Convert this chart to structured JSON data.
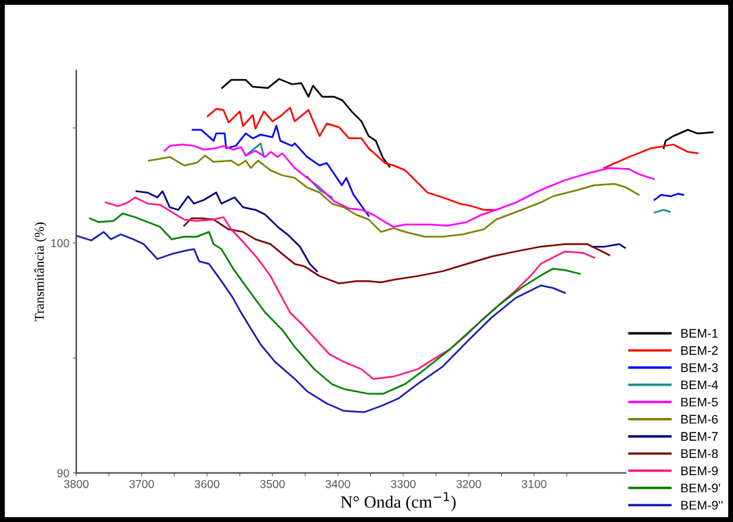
{
  "chart_data": {
    "type": "line",
    "xlabel": "N° Onda (cm$^{−1}$)",
    "ylabel": "Transmitância (%)",
    "xlim": [
      3800,
      2815
    ],
    "ylim": [
      90,
      107.5
    ],
    "xticks": [
      3800,
      {
        "value": 3750,
        "label": null
      },
      3700,
      {
        "value": 3650,
        "label": null
      },
      3600,
      {
        "value": 3550,
        "label": null
      },
      3500,
      {
        "value": 3450,
        "label": null
      },
      3400,
      {
        "value": 3350,
        "label": null
      },
      3300,
      {
        "value": 3250,
        "label": null
      },
      3200,
      {
        "value": 3150,
        "label": null
      },
      3100,
      {
        "value": 3050,
        "label": null
      }
    ],
    "yticks": [
      90,
      {
        "value": 95,
        "label": null
      },
      100,
      {
        "value": 105,
        "label": null
      }
    ],
    "grid": false,
    "legend": "bottom right",
    "marker": "none",
    "line_style": "solid",
    "series": [
      {
        "name": "BEM-1",
        "color": "#000000",
        "x": [
          3577,
          3563,
          3541,
          3530,
          3507,
          3490,
          3470,
          3456,
          3445,
          3438,
          3424,
          3406,
          3393,
          3379,
          3364,
          3353,
          3342,
          3331,
          3321,
          3100,
          2902,
          2899,
          2887,
          2865,
          2850,
          2827
        ],
        "values": [
          106.74,
          107.09,
          107.09,
          106.79,
          106.74,
          107.13,
          106.9,
          106.95,
          106.36,
          106.84,
          106.36,
          106.36,
          106.2,
          105.72,
          105.29,
          104.65,
          104.44,
          103.69,
          103.32,
          null,
          104.12,
          104.44,
          104.65,
          104.92,
          104.76,
          104.81
        ]
      },
      {
        "name": "BEM-2",
        "color": "#ff0000",
        "x": [
          3599,
          3586,
          3575,
          3567,
          3550,
          3545,
          3530,
          3526,
          3513,
          3500,
          3488,
          3473,
          3466,
          3445,
          3428,
          3417,
          3398,
          3383,
          3364,
          3353,
          3328,
          3315,
          3297,
          3278,
          3263,
          3240,
          3214,
          3195,
          3177,
          3158,
          3080,
          2993,
          2959,
          2921,
          2887,
          2865,
          2850
        ],
        "values": [
          105.51,
          105.83,
          105.78,
          105.24,
          105.72,
          105.08,
          105.56,
          104.97,
          105.72,
          105.29,
          105.51,
          105.88,
          105.29,
          105.78,
          104.65,
          105.19,
          105.03,
          104.55,
          104.55,
          104.12,
          103.48,
          103.37,
          103.16,
          102.62,
          102.19,
          101.98,
          101.71,
          101.6,
          101.44,
          101.44,
          null,
          103.26,
          103.69,
          104.12,
          104.28,
          103.96,
          103.9
        ]
      },
      {
        "name": "BEM-3",
        "color": "#0000ff",
        "x": [
          3622,
          3609,
          3590,
          3586,
          3573,
          3571,
          3556,
          3541,
          3530,
          3518,
          3500,
          3494,
          3488,
          3470,
          3466,
          3447,
          3428,
          3417,
          3394,
          3387,
          3376,
          3353,
          3100,
          2916,
          2906,
          2891,
          2880,
          2872
        ],
        "values": [
          104.92,
          104.92,
          104.44,
          104.76,
          104.76,
          104.12,
          104.22,
          104.76,
          104.55,
          104.71,
          104.6,
          105.1,
          104.44,
          104.22,
          104.33,
          103.74,
          103.37,
          103.48,
          102.51,
          102.83,
          102.09,
          101.18,
          null,
          101.87,
          102.09,
          102.03,
          102.14,
          102.09
        ]
      },
      {
        "name": "BEM-4",
        "color": "#1a8c8c",
        "x": [
          3541,
          3518,
          3513,
          3480,
          3447,
          3428,
          3409,
          3100,
          2916,
          2902,
          2893
        ],
        "values": [
          103.8,
          104.33,
          103.74,
          null,
          102.89,
          102.3,
          101.98,
          null,
          101.32,
          101.44,
          101.36
        ]
      },
      {
        "name": "BEM-5",
        "color": "#ff00ff",
        "x": [
          3665,
          3657,
          3638,
          3620,
          3605,
          3586,
          3575,
          3560,
          3548,
          3541,
          3526,
          3511,
          3503,
          3492,
          3485,
          3466,
          3447,
          3428,
          3406,
          3383,
          3364,
          3346,
          3328,
          3315,
          3297,
          3259,
          3233,
          3203,
          3180,
          3158,
          3128,
          3090,
          3053,
          3015,
          2985,
          2955,
          2940,
          2917
        ],
        "values": [
          104.01,
          104.22,
          104.28,
          104.22,
          104.06,
          104.12,
          104.22,
          104.06,
          104.17,
          103.8,
          104.01,
          103.74,
          103.96,
          103.74,
          103.9,
          103.26,
          102.83,
          102.41,
          101.82,
          101.5,
          101.44,
          101.23,
          100.91,
          100.7,
          100.8,
          100.8,
          100.75,
          100.91,
          101.23,
          101.44,
          101.76,
          102.3,
          102.73,
          103.05,
          103.26,
          103.21,
          102.99,
          102.78
        ]
      },
      {
        "name": "BEM-6",
        "color": "#808000",
        "x": [
          3689,
          3676,
          3657,
          3635,
          3616,
          3603,
          3590,
          3563,
          3552,
          3541,
          3533,
          3522,
          3503,
          3485,
          3466,
          3447,
          3428,
          3409,
          3391,
          3372,
          3353,
          3334,
          3315,
          3297,
          3267,
          3240,
          3210,
          3177,
          3158,
          3128,
          3090,
          3071,
          3034,
          3008,
          2977,
          2959,
          2940
        ],
        "values": [
          103.58,
          103.64,
          103.74,
          103.37,
          103.48,
          103.8,
          103.53,
          103.58,
          103.37,
          103.58,
          103.26,
          103.58,
          103.16,
          102.94,
          102.83,
          102.41,
          102.19,
          101.71,
          101.55,
          101.23,
          101.02,
          100.48,
          100.64,
          100.48,
          100.27,
          100.27,
          100.37,
          100.59,
          101.02,
          101.34,
          101.76,
          102.03,
          102.3,
          102.51,
          102.57,
          102.41,
          102.09
        ]
      },
      {
        "name": "BEM-7",
        "color": "#000080",
        "x": [
          3708,
          3691,
          3676,
          3668,
          3657,
          3644,
          3629,
          3620,
          3605,
          3586,
          3578,
          3558,
          3545,
          3526,
          3511,
          3492,
          3477,
          3458,
          3443,
          3432,
          3100,
          3011,
          2992,
          2970,
          2961
        ],
        "values": [
          102.25,
          102.19,
          101.98,
          102.25,
          101.55,
          101.44,
          102.03,
          101.71,
          101.87,
          102.19,
          101.71,
          101.98,
          101.55,
          101.44,
          101.23,
          100.7,
          100.37,
          99.84,
          99.09,
          98.77,
          null,
          99.84,
          99.84,
          99.95,
          99.79
        ]
      },
      {
        "name": "BEM-8",
        "color": "#800000",
        "x": [
          3635,
          3624,
          3609,
          3590,
          3567,
          3545,
          3526,
          3503,
          3485,
          3466,
          3451,
          3428,
          3398,
          3372,
          3353,
          3334,
          3315,
          3278,
          3240,
          3203,
          3165,
          3128,
          3090,
          3053,
          3019,
          2996,
          2985
        ],
        "values": [
          100.75,
          101.07,
          101.07,
          101.02,
          100.59,
          100.48,
          100.16,
          99.95,
          99.52,
          99.09,
          98.98,
          98.56,
          98.24,
          98.34,
          98.34,
          98.29,
          98.4,
          98.56,
          98.77,
          99.09,
          99.41,
          99.63,
          99.84,
          99.95,
          99.95,
          99.63,
          99.47
        ]
      },
      {
        "name": "BEM-9",
        "color": "#ff1a80",
        "x": [
          3755,
          3736,
          3721,
          3710,
          3691,
          3672,
          3654,
          3635,
          3616,
          3590,
          3575,
          3563,
          3545,
          3522,
          3503,
          3473,
          3454,
          3413,
          3391,
          3364,
          3346,
          3315,
          3278,
          3248,
          3229,
          3203,
          3180,
          3150,
          3128,
          3105,
          3090,
          3053,
          3026,
          3008
        ],
        "values": [
          101.76,
          101.6,
          101.76,
          101.98,
          101.71,
          101.66,
          101.34,
          101.02,
          100.96,
          101.02,
          101.12,
          100.59,
          100.05,
          99.3,
          98.56,
          96.97,
          96.44,
          95.16,
          94.83,
          94.51,
          94.09,
          94.19,
          94.51,
          95.05,
          95.37,
          96.01,
          96.65,
          97.4,
          97.94,
          98.58,
          99.09,
          99.63,
          99.57,
          99.36
        ]
      },
      {
        "name": "BEM-9'",
        "color": "#008000",
        "x": [
          3779,
          3766,
          3743,
          3729,
          3710,
          3691,
          3672,
          3654,
          3635,
          3616,
          3597,
          3590,
          3578,
          3560,
          3541,
          3511,
          3485,
          3466,
          3436,
          3409,
          3391,
          3353,
          3331,
          3297,
          3267,
          3229,
          3192,
          3154,
          3120,
          3090,
          3071,
          3053,
          3030
        ],
        "values": [
          101.07,
          100.91,
          100.96,
          101.28,
          101.12,
          100.91,
          100.7,
          100.16,
          100.27,
          100.27,
          100.48,
          99.95,
          99.73,
          98.88,
          98.13,
          96.97,
          96.22,
          95.48,
          94.51,
          93.86,
          93.65,
          93.44,
          93.44,
          93.87,
          94.51,
          95.37,
          96.33,
          97.29,
          98.04,
          98.58,
          98.88,
          98.82,
          98.66
        ]
      },
      {
        "name": "BEM-9''",
        "color": "#1a1ab4",
        "x": [
          3800,
          3777,
          3758,
          3747,
          3732,
          3713,
          3697,
          3676,
          3654,
          3631,
          3620,
          3612,
          3597,
          3578,
          3560,
          3548,
          3518,
          3496,
          3466,
          3447,
          3417,
          3391,
          3360,
          3334,
          3308,
          3278,
          3240,
          3203,
          3165,
          3128,
          3090,
          3071,
          3053
        ],
        "values": [
          100.32,
          100.11,
          100.48,
          100.16,
          100.37,
          100.16,
          99.95,
          99.3,
          99.52,
          99.68,
          99.73,
          99.2,
          99.09,
          98.34,
          97.59,
          96.97,
          95.58,
          94.83,
          94.09,
          93.55,
          93.02,
          92.7,
          92.64,
          92.91,
          93.23,
          93.87,
          94.62,
          95.69,
          96.76,
          97.61,
          98.15,
          98.04,
          97.83
        ]
      }
    ]
  }
}
